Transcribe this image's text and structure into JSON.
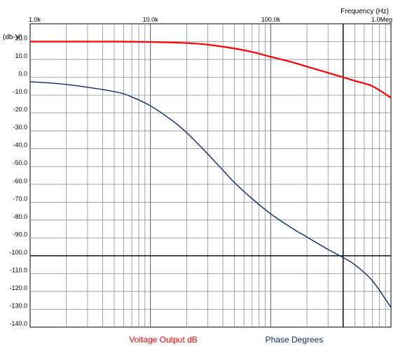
{
  "chart_data": {
    "type": "line",
    "xlabel": "Frequency  (Hz)",
    "ylabel": "(db-V)",
    "x_scale": "log",
    "xlim": [
      1000,
      1000000
    ],
    "ylim": [
      -140,
      30
    ],
    "x_ticks": [
      {
        "value": 1000,
        "label": "1.0k"
      },
      {
        "value": 10000,
        "label": "10.0k"
      },
      {
        "value": 100000,
        "label": "100.0k"
      },
      {
        "value": 1000000,
        "label": "1.0Meg"
      }
    ],
    "y_ticks": [
      {
        "value": 20,
        "label": "20.0"
      },
      {
        "value": 10,
        "label": "10.0"
      },
      {
        "value": 0,
        "label": "0.0"
      },
      {
        "value": -10,
        "label": "-10.0"
      },
      {
        "value": -20,
        "label": "-20.0"
      },
      {
        "value": -30,
        "label": "-30.0"
      },
      {
        "value": -40,
        "label": "-40.0"
      },
      {
        "value": -50,
        "label": "-50.0"
      },
      {
        "value": -60,
        "label": "-60.0"
      },
      {
        "value": -70,
        "label": "-70.0"
      },
      {
        "value": -80,
        "label": "-80.0"
      },
      {
        "value": -90,
        "label": "-90.0"
      },
      {
        "value": -100,
        "label": "-100.0"
      },
      {
        "value": -110,
        "label": "-110.0"
      },
      {
        "value": -120,
        "label": "-120.0"
      },
      {
        "value": -130,
        "label": "-130.0"
      },
      {
        "value": -140,
        "label": "-140.0"
      }
    ],
    "grid": true,
    "series": [
      {
        "name": "Voltage Output dB",
        "color": "#ff0000",
        "x": [
          1000,
          2000,
          5000,
          10000,
          20000,
          30000,
          50000,
          70000,
          100000,
          150000,
          200000,
          300000,
          400000,
          500000,
          700000,
          1000000
        ],
        "y": [
          20,
          20,
          20,
          19.8,
          19.2,
          18.3,
          16.1,
          14.2,
          11.5,
          8.5,
          6.0,
          2.5,
          0.0,
          -2.0,
          -5.0,
          -11.5
        ]
      },
      {
        "name": "Phase Degrees",
        "color": "#0b2a6b",
        "x": [
          1000,
          2000,
          5000,
          7000,
          10000,
          15000,
          20000,
          30000,
          40000,
          50000,
          70000,
          100000,
          150000,
          200000,
          300000,
          400000,
          500000,
          700000,
          1000000
        ],
        "y": [
          -2.5,
          -4,
          -8,
          -11,
          -16,
          -24,
          -31,
          -43,
          -52,
          -59,
          -68,
          -76.5,
          -84.5,
          -89.5,
          -96.5,
          -101,
          -105,
          -114,
          -129
        ]
      }
    ],
    "markers": {
      "vertical_x": 400000,
      "horizontal_y": -100
    },
    "legend_position": "bottom"
  }
}
